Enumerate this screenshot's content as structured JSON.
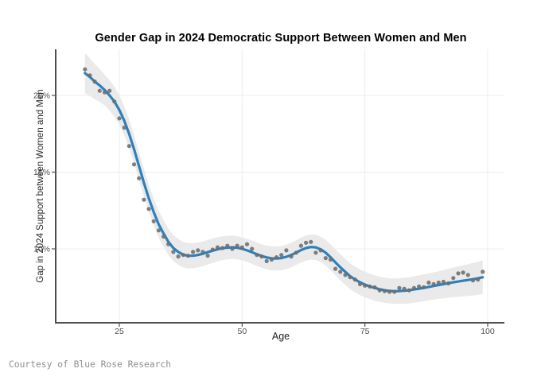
{
  "title": "Gender Gap in 2024 Democratic Support Between Women and Men",
  "credit": "Courtesy of Blue Rose Research",
  "chart_data": {
    "type": "scatter",
    "title": "Gender Gap in 2024 Democratic Support Between Women and Men",
    "xlabel": "Age",
    "ylabel": "Gap in 2024 Support between Women and Men",
    "xlim": [
      12,
      103.5
    ],
    "ylim": [
      5.2,
      23.1
    ],
    "grid": true,
    "legend": false,
    "x_ticks": [
      {
        "value": 25,
        "label": "25"
      },
      {
        "value": 50,
        "label": "50"
      },
      {
        "value": 75,
        "label": "75"
      },
      {
        "value": 100,
        "label": "100"
      }
    ],
    "y_ticks": [
      {
        "value": 10,
        "label": "10%"
      },
      {
        "value": 15,
        "label": "15%"
      },
      {
        "value": 20,
        "label": "20%"
      }
    ],
    "ages": [
      18,
      19,
      20,
      21,
      22,
      23,
      24,
      25,
      26,
      27,
      28,
      29,
      30,
      31,
      32,
      33,
      34,
      35,
      36,
      37,
      38,
      39,
      40,
      41,
      42,
      43,
      44,
      45,
      46,
      47,
      48,
      49,
      50,
      51,
      52,
      53,
      54,
      55,
      56,
      57,
      58,
      59,
      60,
      61,
      62,
      63,
      64,
      65,
      66,
      67,
      68,
      69,
      70,
      71,
      72,
      73,
      74,
      75,
      76,
      77,
      78,
      79,
      80,
      81,
      82,
      83,
      84,
      85,
      86,
      87,
      88,
      89,
      90,
      91,
      92,
      93,
      94,
      95,
      96,
      97,
      98,
      99
    ],
    "series": [
      {
        "name": "observed-gap-points",
        "type": "scatter",
        "values": [
          21.7,
          21.3,
          20.9,
          20.3,
          20.2,
          20.3,
          19.6,
          18.5,
          17.9,
          16.7,
          15.5,
          14.6,
          13.2,
          12.6,
          11.8,
          11.2,
          10.8,
          10.3,
          9.8,
          9.5,
          9.6,
          9.55,
          9.8,
          9.9,
          9.8,
          9.55,
          9.95,
          10.1,
          10.05,
          10.2,
          10.0,
          10.2,
          10.1,
          10.3,
          10.0,
          9.6,
          9.5,
          9.2,
          9.3,
          9.45,
          9.6,
          9.9,
          9.5,
          9.75,
          10.2,
          10.4,
          10.45,
          9.75,
          9.9,
          9.4,
          9.3,
          8.7,
          8.5,
          8.3,
          8.15,
          8.0,
          7.7,
          7.6,
          7.55,
          7.5,
          7.3,
          7.25,
          7.2,
          7.2,
          7.45,
          7.4,
          7.3,
          7.45,
          7.55,
          7.5,
          7.8,
          7.7,
          7.8,
          7.85,
          7.75,
          8.1,
          8.4,
          8.45,
          8.3,
          7.95,
          8.0,
          8.5
        ]
      },
      {
        "name": "loess-smooth-line",
        "type": "line",
        "values": [
          21.45,
          21.2,
          20.9,
          20.65,
          20.35,
          20.0,
          19.6,
          19.05,
          18.35,
          17.5,
          16.5,
          15.4,
          14.3,
          13.3,
          12.4,
          11.6,
          11.0,
          10.45,
          10.05,
          9.8,
          9.62,
          9.55,
          9.55,
          9.6,
          9.68,
          9.78,
          9.88,
          9.97,
          10.04,
          10.08,
          10.1,
          10.07,
          10.0,
          9.9,
          9.78,
          9.65,
          9.53,
          9.44,
          9.38,
          9.37,
          9.4,
          9.48,
          9.6,
          9.75,
          9.92,
          10.05,
          10.12,
          10.1,
          9.97,
          9.75,
          9.45,
          9.12,
          8.8,
          8.5,
          8.22,
          8.0,
          7.82,
          7.67,
          7.55,
          7.45,
          7.37,
          7.3,
          7.26,
          7.24,
          7.25,
          7.27,
          7.3,
          7.35,
          7.4,
          7.46,
          7.52,
          7.58,
          7.64,
          7.7,
          7.76,
          7.82,
          7.87,
          7.92,
          7.97,
          8.02,
          8.08,
          8.15
        ]
      },
      {
        "name": "confidence-band",
        "type": "band",
        "anchor_ages": [
          18,
          22,
          30,
          40,
          50,
          60,
          70,
          80,
          90,
          99
        ],
        "halfwidths": [
          1.3,
          1.0,
          0.9,
          0.82,
          0.75,
          0.8,
          0.85,
          0.82,
          0.9,
          1.1
        ]
      }
    ],
    "colors": {
      "line": "#2e80bd",
      "points": "#6d6d6d",
      "band": "#e9e9e9",
      "grid": "#ececec",
      "axis": "#4f4f51",
      "tick_text": "#4d4d4d"
    }
  }
}
